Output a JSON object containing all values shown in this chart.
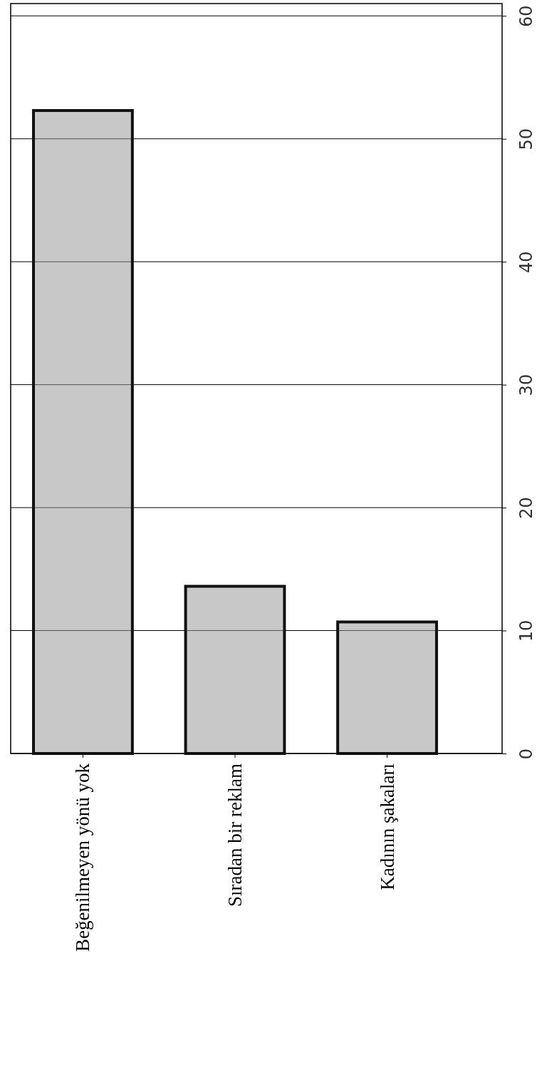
{
  "chart_data": {
    "type": "bar",
    "categories": [
      "Beğenilmeyen yönü yok",
      "Sıradan bir reklam",
      "Kadının şakaları"
    ],
    "values": [
      52.3,
      13.6,
      10.7
    ],
    "color": "#9a9a9a",
    "ylim": [
      0,
      61
    ],
    "yticks": [
      0,
      10,
      20,
      30,
      40,
      50,
      60
    ],
    "grid": "y"
  }
}
